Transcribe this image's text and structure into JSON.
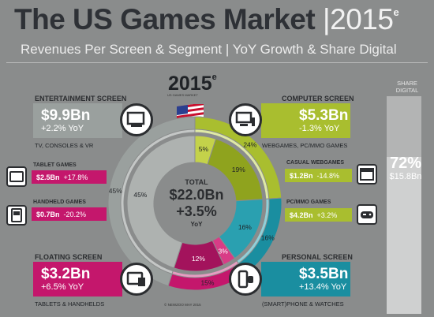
{
  "title": {
    "main": "The US Games Market",
    "year": "2015",
    "sup": "e"
  },
  "subtitle": "Revenues Per Screen & Segment | YoY Growth & Share Digital",
  "center": {
    "year": "2015",
    "sup": "e",
    "tiny": "US GAMES MARKET",
    "total_label": "TOTAL",
    "total_value": "$22.0Bn",
    "growth": "+3.5%",
    "growth_label": "YoY"
  },
  "screens": {
    "entertainment": {
      "header": "ENTERTAINMENT SCREEN",
      "value": "$9.9Bn",
      "growth": "+2.2% YoY",
      "desc": "TV, CONSOLES & VR"
    },
    "computer": {
      "header": "COMPUTER SCREEN",
      "value": "$5.3Bn",
      "growth": "-1.3% YoY",
      "desc": "WEBGAMES, PC/MMO GAMES"
    },
    "floating": {
      "header": "FLOATING SCREEN",
      "value": "$3.2Bn",
      "growth": "+6.5% YoY",
      "desc": "TABLETS & HANDHELDS"
    },
    "personal": {
      "header": "PERSONAL SCREEN",
      "value": "$3.5Bn",
      "growth": "+13.4% YoY",
      "desc": "(SMART)PHONE & WATCHES"
    }
  },
  "segments": {
    "tablet": {
      "header": "TABLET GAMES",
      "value": "$2.5Bn",
      "growth": "+17.8%"
    },
    "handheld": {
      "header": "HANDHELD GAMES",
      "value": "$0.7Bn",
      "growth": "-20.2%"
    },
    "casual": {
      "header": "CASUAL WEBGAMES",
      "value": "$1.2Bn",
      "growth": "-14.8%"
    },
    "pcmmo": {
      "header": "PC/MMO GAMES",
      "value": "$4.2Bn",
      "growth": "+3.2%"
    }
  },
  "share_digital": {
    "header": "SHARE DIGITAL",
    "pct": "72%",
    "value": "$15.8Bn",
    "fraction": 0.72
  },
  "copyright": "© NEWZOO MAY 2015",
  "colors": {
    "entertainment": "#9aa09e",
    "computer": "#a9be2f",
    "floating": "#c4176c",
    "personal": "#1a8ea0"
  },
  "chart_data": {
    "type": "pie",
    "outer_ring": {
      "categories": [
        "Computer Screen",
        "Personal Screen",
        "Floating Screen",
        "Entertainment Screen"
      ],
      "values": [
        24,
        16,
        15,
        45
      ],
      "labels": [
        "24%",
        "16%",
        "15%",
        "45%"
      ]
    },
    "inner_ring": {
      "categories": [
        "Casual Webgames",
        "PC/MMO Games",
        "(Smart)Phone & Watches",
        "Handheld Games",
        "Tablet Games",
        "TV, Consoles & VR"
      ],
      "values": [
        5,
        19,
        16,
        3,
        12,
        45
      ],
      "labels": [
        "5%",
        "19%",
        "16%",
        "3%",
        "12%",
        "45%"
      ]
    }
  }
}
